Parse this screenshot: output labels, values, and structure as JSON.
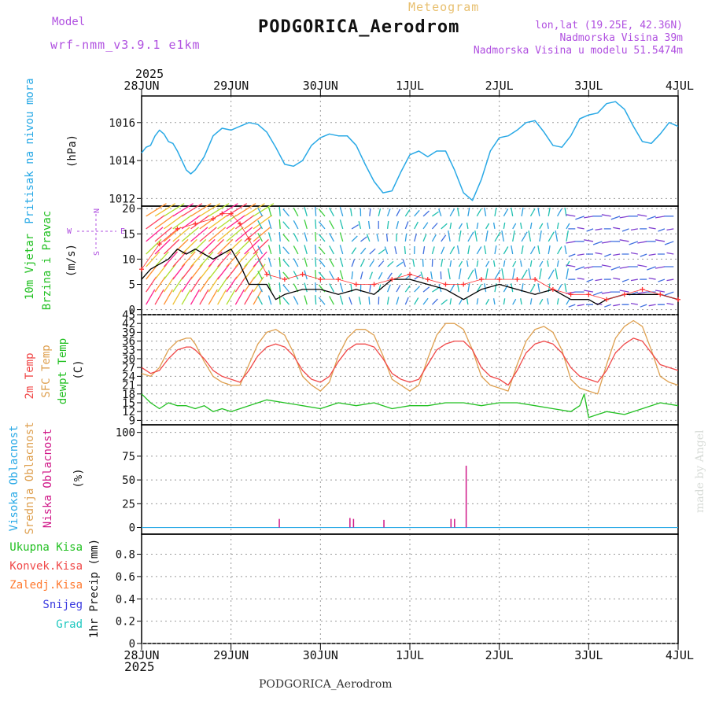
{
  "header": {
    "meteogram_label": "Meteogram",
    "model_label": "Model",
    "model_name": "wrf-nmm_v3.9.1 e1km",
    "station_title": "PODGORICA_Aerodrom",
    "lonlat": "lon,lat (19.25E, 42.36N)",
    "altitude": "Nadmorska Visina 39m",
    "model_altitude": "Nadmorska Visina u modelu 51.5474m",
    "footer_station": "PODGORICA_Aerodrom",
    "credit": "made by Angel",
    "year_top": "2025",
    "year_bottom": "2025"
  },
  "colors": {
    "pressure": "#29a9e6",
    "wind_axis_label": "#22c022",
    "wind_speed": "#000000",
    "wind_gust": "#ff3030",
    "temp_2m": "#f04848",
    "temp_sfc": "#dea050",
    "dewpoint": "#22c022",
    "cloud_low": "#d01888",
    "cloud_mid": "#dea050",
    "cloud_high": "#29a9e6",
    "precip_total": "#22c022",
    "precip_conv": "#f04848",
    "precip_frz": "#ff7a30",
    "precip_snow": "#3a3ae0",
    "precip_grad": "#20c8c0",
    "header_purple": "#b050e0",
    "header_orange": "#e8c070"
  },
  "chart_data": [
    {
      "type": "line",
      "panel": "pressure",
      "ylabel": [
        "Pritisak na nivou mora",
        "(hPa)"
      ],
      "yticks": [
        1012,
        1014,
        1016
      ],
      "ylim": [
        1011.6,
        1017.4
      ],
      "x_labels": [
        "28JUN",
        "29JUN",
        "30JUN",
        "1JUL",
        "2JUL",
        "3JUL",
        "4JUL"
      ],
      "x_range_days": [
        0,
        6
      ],
      "grid": true,
      "series": [
        {
          "key": "mslp",
          "x": [
            0,
            0.05,
            0.1,
            0.15,
            0.2,
            0.25,
            0.3,
            0.35,
            0.4,
            0.45,
            0.5,
            0.55,
            0.6,
            0.7,
            0.8,
            0.9,
            1.0,
            1.1,
            1.2,
            1.3,
            1.4,
            1.5,
            1.6,
            1.7,
            1.8,
            1.9,
            2.0,
            2.1,
            2.2,
            2.3,
            2.4,
            2.5,
            2.6,
            2.7,
            2.8,
            2.9,
            3.0,
            3.1,
            3.2,
            3.3,
            3.4,
            3.5,
            3.6,
            3.7,
            3.8,
            3.9,
            4.0,
            4.1,
            4.2,
            4.3,
            4.4,
            4.5,
            4.6,
            4.7,
            4.8,
            4.9,
            5.0,
            5.1,
            5.2,
            5.3,
            5.4,
            5.5,
            5.6,
            5.7,
            5.8,
            5.9,
            6.0
          ],
          "values": [
            1014.4,
            1014.7,
            1014.8,
            1015.3,
            1015.6,
            1015.4,
            1015.0,
            1014.9,
            1014.5,
            1014.0,
            1013.5,
            1013.3,
            1013.5,
            1014.2,
            1015.3,
            1015.7,
            1015.6,
            1015.8,
            1016.0,
            1015.9,
            1015.5,
            1014.7,
            1013.8,
            1013.7,
            1014.0,
            1014.8,
            1015.2,
            1015.4,
            1015.3,
            1015.3,
            1014.8,
            1013.8,
            1012.9,
            1012.3,
            1012.4,
            1013.4,
            1014.3,
            1014.5,
            1014.2,
            1014.5,
            1014.5,
            1013.5,
            1012.3,
            1011.9,
            1013.0,
            1014.5,
            1015.2,
            1015.3,
            1015.6,
            1016.0,
            1016.1,
            1015.5,
            1014.8,
            1014.7,
            1015.3,
            1016.2,
            1016.4,
            1016.5,
            1017.0,
            1017.1,
            1016.7,
            1015.8,
            1015.0,
            1014.9,
            1015.4,
            1016.0,
            1015.8
          ]
        }
      ]
    },
    {
      "type": "line",
      "panel": "wind",
      "ylabel": [
        "10m Vjetar",
        "Brzina i Pravac",
        "(m/s)"
      ],
      "yticks": [
        0,
        5,
        10,
        15,
        20
      ],
      "ylim": [
        -1,
        20.5
      ],
      "compass_labels": [
        "N",
        "E",
        "S",
        "W"
      ],
      "grid": true,
      "series": [
        {
          "key": "speed",
          "x": [
            0,
            0.1,
            0.2,
            0.3,
            0.4,
            0.5,
            0.6,
            0.7,
            0.8,
            0.9,
            1.0,
            1.1,
            1.2,
            1.3,
            1.4,
            1.5,
            1.6,
            1.8,
            2.0,
            2.2,
            2.4,
            2.6,
            2.8,
            3.0,
            3.2,
            3.4,
            3.5,
            3.6,
            3.8,
            4.0,
            4.2,
            4.4,
            4.6,
            4.8,
            5.0,
            5.1,
            5.2,
            5.4,
            5.6,
            5.8,
            6.0
          ],
          "values": [
            6,
            8,
            9,
            10,
            12,
            11,
            12,
            11,
            10,
            11,
            12,
            9,
            5,
            5,
            5,
            2,
            3,
            4,
            4,
            3,
            4,
            3,
            6,
            6,
            5,
            4,
            3,
            2,
            4,
            5,
            4,
            3,
            4,
            2,
            2,
            1,
            2,
            3,
            3,
            3,
            2
          ]
        },
        {
          "key": "gust",
          "x": [
            0,
            0.2,
            0.4,
            0.6,
            0.8,
            0.9,
            1.0,
            1.1,
            1.2,
            1.4,
            1.6,
            1.8,
            2.0,
            2.2,
            2.4,
            2.6,
            2.8,
            3.0,
            3.2,
            3.4,
            3.6,
            3.8,
            4.0,
            4.2,
            4.4,
            4.6,
            4.8,
            5.0,
            5.2,
            5.4,
            5.6,
            5.8,
            6.0
          ],
          "values": [
            8,
            13,
            16,
            17,
            18,
            19,
            19,
            17,
            14,
            7,
            6,
            7,
            6,
            6,
            5,
            5,
            6,
            7,
            6,
            5,
            5,
            6,
            6,
            6,
            6,
            4,
            3,
            3,
            2,
            3,
            4,
            3,
            2
          ]
        }
      ]
    },
    {
      "type": "line",
      "panel": "temperature",
      "ylabel": [
        "2m Temp",
        "SFC Temp",
        "dewpt Temp",
        "(C)"
      ],
      "yticks": [
        9,
        12,
        15,
        18,
        21,
        24,
        27,
        30,
        33,
        36,
        39,
        42,
        45
      ],
      "ylim": [
        7.5,
        45
      ],
      "grid": true,
      "series": [
        {
          "key": "t2m",
          "x": [
            0,
            0.1,
            0.2,
            0.3,
            0.4,
            0.5,
            0.55,
            0.6,
            0.7,
            0.8,
            0.9,
            1.0,
            1.1,
            1.2,
            1.3,
            1.4,
            1.5,
            1.6,
            1.7,
            1.8,
            1.9,
            2.0,
            2.1,
            2.2,
            2.3,
            2.4,
            2.5,
            2.6,
            2.7,
            2.8,
            2.9,
            3.0,
            3.1,
            3.2,
            3.3,
            3.4,
            3.5,
            3.6,
            3.7,
            3.8,
            3.9,
            4.0,
            4.1,
            4.2,
            4.3,
            4.4,
            4.5,
            4.6,
            4.7,
            4.8,
            4.9,
            5.0,
            5.1,
            5.2,
            5.3,
            5.4,
            5.5,
            5.6,
            5.7,
            5.8,
            5.9,
            6.0
          ],
          "values": [
            27,
            25,
            26,
            30,
            33,
            34,
            34,
            33,
            30,
            26,
            24,
            23,
            22,
            26,
            31,
            34,
            35,
            34,
            31,
            26,
            23,
            22,
            24,
            29,
            33,
            35,
            35,
            34,
            30,
            25,
            23,
            22,
            23,
            28,
            33,
            35,
            36,
            36,
            33,
            27,
            24,
            23,
            21,
            26,
            32,
            35,
            36,
            35,
            32,
            27,
            24,
            23,
            22,
            26,
            32,
            35,
            37,
            36,
            32,
            28,
            27,
            26
          ]
        },
        {
          "key": "tsfc",
          "x": [
            0,
            0.1,
            0.2,
            0.3,
            0.4,
            0.5,
            0.55,
            0.6,
            0.7,
            0.8,
            0.9,
            1.0,
            1.1,
            1.2,
            1.3,
            1.4,
            1.5,
            1.6,
            1.7,
            1.8,
            1.9,
            2.0,
            2.1,
            2.2,
            2.3,
            2.4,
            2.5,
            2.6,
            2.7,
            2.8,
            2.9,
            3.0,
            3.1,
            3.2,
            3.3,
            3.4,
            3.5,
            3.6,
            3.7,
            3.8,
            3.9,
            4.0,
            4.1,
            4.2,
            4.3,
            4.4,
            4.5,
            4.6,
            4.7,
            4.8,
            4.9,
            5.0,
            5.1,
            5.2,
            5.3,
            5.4,
            5.5,
            5.6,
            5.7,
            5.8,
            5.9,
            6.0
          ],
          "values": [
            25,
            24,
            27,
            33,
            36,
            37,
            37,
            35,
            29,
            24,
            22,
            21,
            21,
            28,
            35,
            39,
            40,
            38,
            32,
            24,
            21,
            19,
            22,
            31,
            37,
            40,
            40,
            38,
            31,
            23,
            21,
            19,
            21,
            30,
            38,
            42,
            42,
            40,
            33,
            24,
            21,
            20,
            19,
            28,
            36,
            40,
            41,
            39,
            33,
            23,
            20,
            19,
            18,
            28,
            37,
            41,
            43,
            41,
            33,
            24,
            22,
            21
          ]
        },
        {
          "key": "dewpt",
          "x": [
            0,
            0.1,
            0.2,
            0.3,
            0.4,
            0.5,
            0.6,
            0.7,
            0.8,
            0.9,
            1.0,
            1.2,
            1.4,
            1.6,
            1.8,
            2.0,
            2.2,
            2.4,
            2.6,
            2.8,
            3.0,
            3.2,
            3.4,
            3.6,
            3.8,
            4.0,
            4.2,
            4.4,
            4.6,
            4.8,
            4.9,
            4.95,
            5.0,
            5.1,
            5.2,
            5.4,
            5.6,
            5.8,
            6.0
          ],
          "values": [
            18,
            15,
            13,
            15,
            14,
            14,
            13,
            14,
            12,
            13,
            12,
            14,
            16,
            15,
            14,
            13,
            15,
            14,
            15,
            13,
            14,
            14,
            15,
            15,
            14,
            15,
            15,
            14,
            13,
            12,
            14,
            18,
            10,
            11,
            12,
            11,
            13,
            15,
            14
          ]
        }
      ]
    },
    {
      "type": "bar",
      "panel": "clouds",
      "ylabel": [
        "Visoka Oblacnost",
        "Srednja Oblacnost",
        "Niska Oblacnost",
        "(%)"
      ],
      "yticks": [
        0,
        25,
        50,
        75,
        100
      ],
      "ylim": [
        -7,
        108
      ],
      "grid": true,
      "series": [
        {
          "key": "low",
          "x": [
            1.54,
            2.33,
            2.37,
            2.71,
            3.46,
            3.5,
            3.63
          ],
          "values": [
            9,
            10,
            9,
            8,
            9,
            9,
            65
          ]
        },
        {
          "key": "mid",
          "x": [],
          "values": []
        },
        {
          "key": "high",
          "x": [],
          "values": []
        }
      ]
    },
    {
      "type": "bar",
      "panel": "precip",
      "ylabel": [
        "1hr Precip (mm)"
      ],
      "yticks": [
        0,
        0.2,
        0.4,
        0.6,
        0.8
      ],
      "ylim": [
        0,
        0.98
      ],
      "grid": true,
      "legend": [
        "Ukupna Kisa",
        "Konvek.Kisa",
        "Zaledj.Kisa",
        "Snijeg",
        "Grad"
      ],
      "series": [
        {
          "key": "total",
          "x": [],
          "values": []
        }
      ]
    }
  ]
}
